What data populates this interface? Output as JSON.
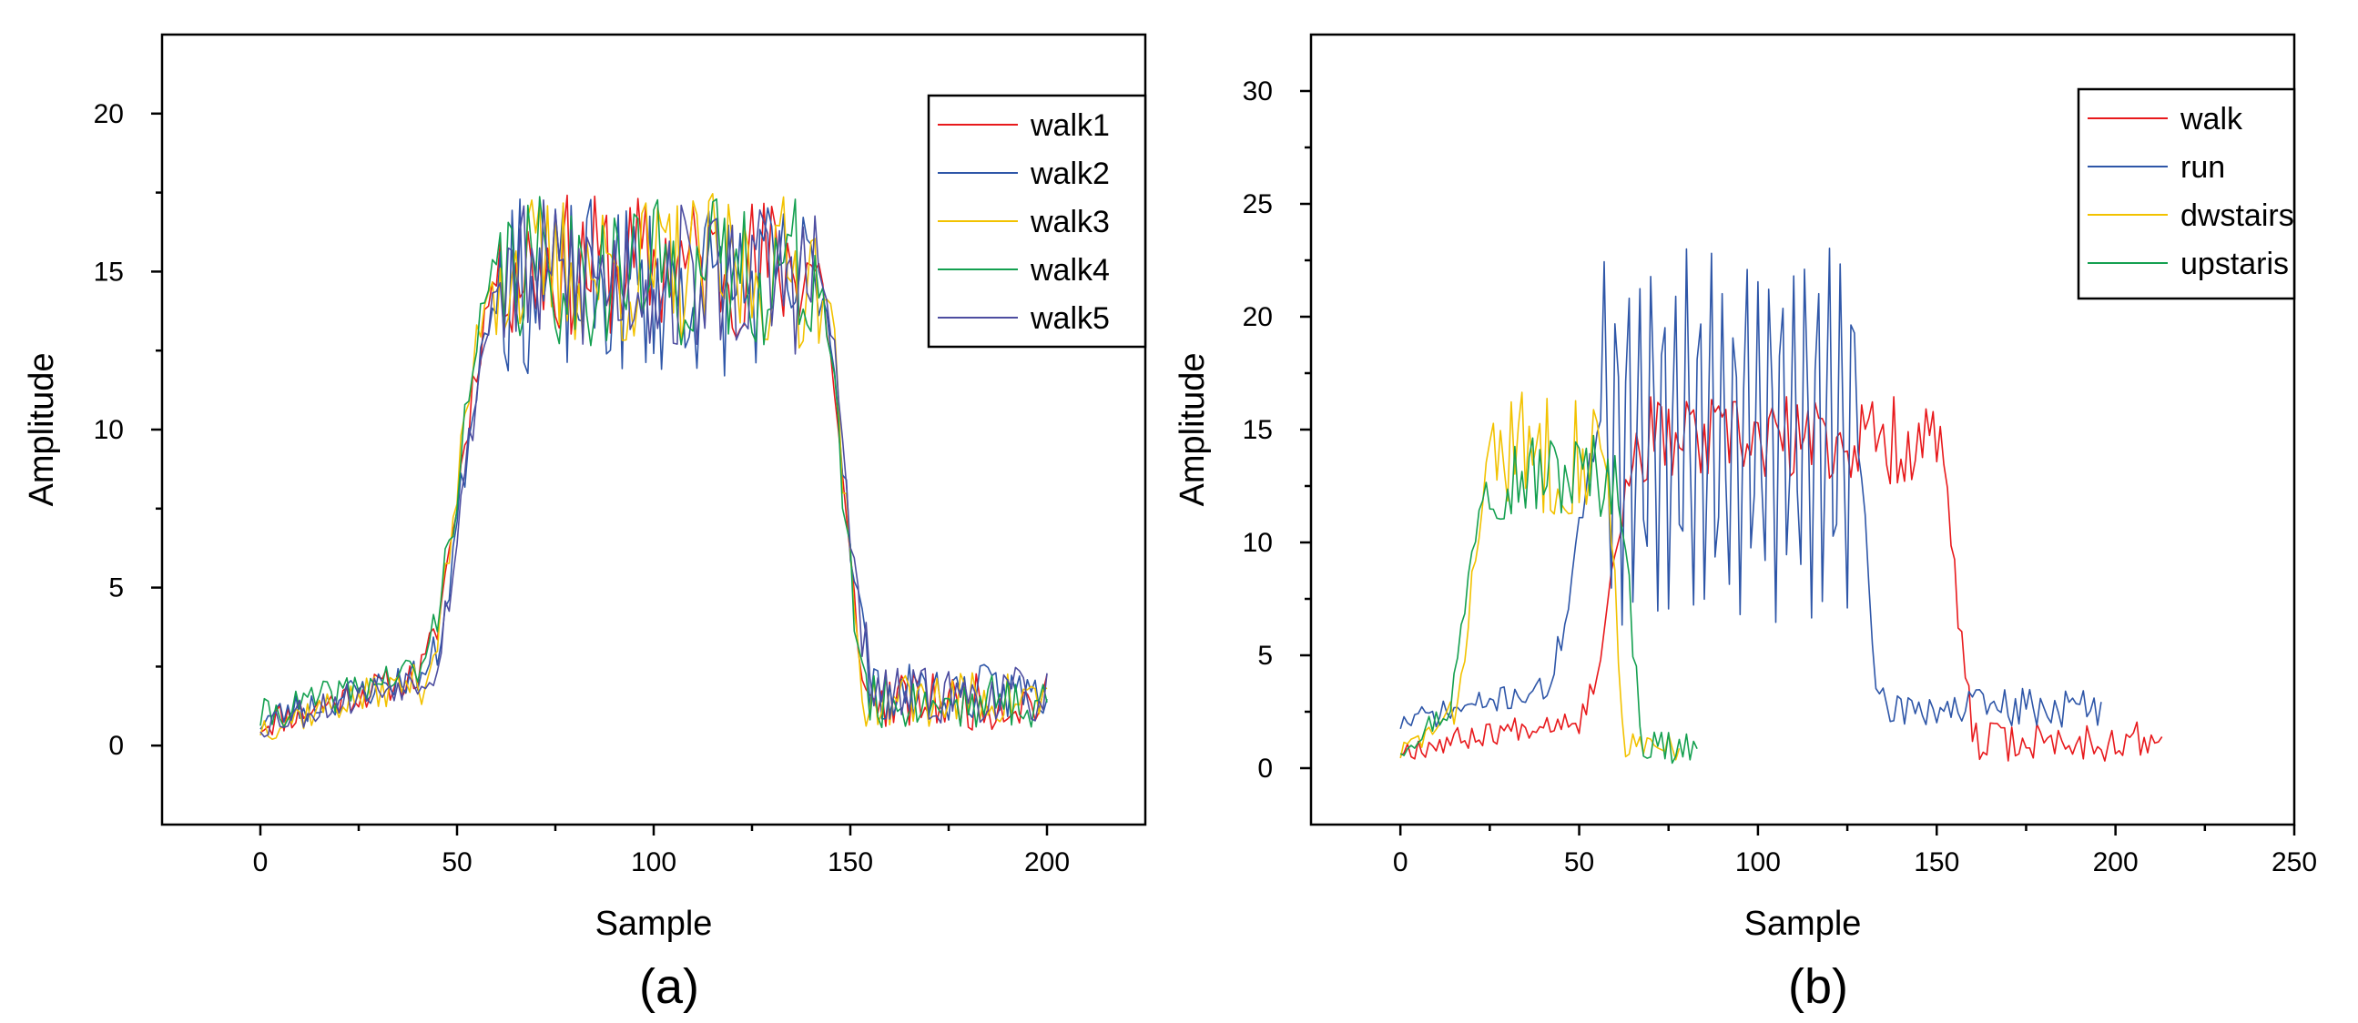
{
  "chart_data": [
    {
      "type": "line",
      "panel_label": "(a)",
      "xlabel": "Sample",
      "ylabel": "Amplitude",
      "xlim": [
        -25,
        225
      ],
      "ylim": [
        -2.5,
        22.5
      ],
      "xticks": [
        0,
        50,
        100,
        150,
        200
      ],
      "xtick_labels": [
        "0",
        "50",
        "100",
        "150",
        "200"
      ],
      "yticks": [
        0,
        5,
        10,
        15,
        20
      ],
      "ytick_labels": [
        "0",
        "5",
        "10",
        "15",
        "20"
      ],
      "grid": false,
      "legend_position": "top-right",
      "series": [
        {
          "name": "walk1",
          "color": "#e8191c",
          "profile": {
            "n": 200,
            "base": 0.7,
            "rise_start": 40,
            "rise_end": 62,
            "fall_start": 141,
            "fall_end": 154,
            "plateau": 15.2,
            "noise": 2.3,
            "tail": 1.2,
            "seed": 11
          }
        },
        {
          "name": "walk2",
          "color": "#2e56a8",
          "profile": {
            "n": 200,
            "base": 0.8,
            "rise_start": 42,
            "rise_end": 61,
            "fall_start": 142,
            "fall_end": 155,
            "plateau": 14.5,
            "noise": 2.8,
            "tail": 1.5,
            "seed": 23
          }
        },
        {
          "name": "walk3",
          "color": "#f2c200",
          "profile": {
            "n": 200,
            "base": 0.6,
            "rise_start": 41,
            "rise_end": 60,
            "fall_start": 143,
            "fall_end": 153,
            "plateau": 15.0,
            "noise": 2.5,
            "tail": 1.3,
            "seed": 37
          }
        },
        {
          "name": "walk4",
          "color": "#14a050",
          "profile": {
            "n": 200,
            "base": 0.9,
            "rise_start": 40,
            "rise_end": 61,
            "fall_start": 141,
            "fall_end": 154,
            "plateau": 15.0,
            "noise": 2.4,
            "tail": 1.2,
            "seed": 41
          }
        },
        {
          "name": "walk5",
          "color": "#4d4da0",
          "profile": {
            "n": 200,
            "base": 0.7,
            "rise_start": 42,
            "rise_end": 62,
            "fall_start": 142,
            "fall_end": 155,
            "plateau": 14.8,
            "noise": 2.5,
            "tail": 1.4,
            "seed": 53
          }
        }
      ]
    },
    {
      "type": "line",
      "panel_label": "(b)",
      "xlabel": "Sample",
      "ylabel": "Amplitude",
      "xlim": [
        -25,
        250
      ],
      "ylim": [
        -2.5,
        32.5
      ],
      "xticks": [
        0,
        50,
        100,
        150,
        200,
        250
      ],
      "xtick_labels": [
        "0",
        "50",
        "100",
        "150",
        "200",
        "250"
      ],
      "yticks": [
        0,
        5,
        10,
        15,
        20,
        25,
        30
      ],
      "ytick_labels": [
        "0",
        "5",
        "10",
        "15",
        "20",
        "25",
        "30"
      ],
      "grid": false,
      "legend_position": "top-right",
      "series": [
        {
          "name": "walk",
          "color": "#e8191c",
          "profile": {
            "n": 213,
            "base": 0.8,
            "rise_start": 50,
            "rise_end": 68,
            "fall_start": 150,
            "fall_end": 160,
            "plateau": 14.5,
            "noise": 2.0,
            "tail": 1.0,
            "seed": 67
          }
        },
        {
          "name": "run",
          "color": "#2e56a8",
          "profile": {
            "n": 196,
            "base": 2.0,
            "rise_start": 40,
            "rise_end": 57,
            "fall_start": 128,
            "fall_end": 133,
            "plateau": 14.8,
            "noise": 7.5,
            "tail": 2.5,
            "oscillate": true,
            "seed": 71
          }
        },
        {
          "name": "dwstairs",
          "color": "#f2c200",
          "profile": {
            "n": 78,
            "base": 0.7,
            "rise_start": 14,
            "rise_end": 26,
            "fall_start": 57,
            "fall_end": 63,
            "plateau": 14.0,
            "noise": 2.8,
            "tail": 0.6,
            "seed": 83
          }
        },
        {
          "name": "upstaris",
          "color": "#14a050",
          "profile": {
            "n": 83,
            "base": 0.9,
            "rise_start": 12,
            "rise_end": 25,
            "fall_start": 60,
            "fall_end": 68,
            "plateau": 13.0,
            "noise": 2.0,
            "tail": 0.8,
            "seed": 97
          }
        }
      ]
    }
  ]
}
